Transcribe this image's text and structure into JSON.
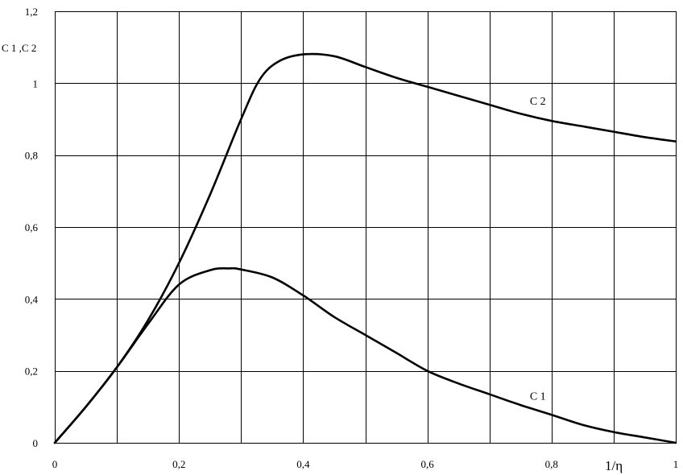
{
  "chart_data": {
    "type": "line",
    "title": "",
    "xlabel": "1/η",
    "ylabel": "C 1 ,C 2",
    "xlim": [
      0,
      1
    ],
    "ylim": [
      0,
      1.2
    ],
    "grid": true,
    "x_ticks": [
      0,
      0.1,
      0.2,
      0.3,
      0.4,
      0.5,
      0.6,
      0.7,
      0.8,
      0.9,
      1
    ],
    "x_tick_labels": [
      "0",
      "",
      "0,2",
      "",
      "0,4",
      "",
      "0,6",
      "",
      "0,8",
      "",
      "1"
    ],
    "y_ticks": [
      0,
      0.2,
      0.4,
      0.6,
      0.8,
      1,
      1.2
    ],
    "y_tick_labels": [
      "0",
      "0,2",
      "0,4",
      "0,6",
      "0,8",
      "1",
      "1,2"
    ],
    "series": [
      {
        "name": "C 1",
        "x": [
          0,
          0.05,
          0.1,
          0.15,
          0.2,
          0.25,
          0.28,
          0.3,
          0.35,
          0.4,
          0.45,
          0.5,
          0.55,
          0.6,
          0.65,
          0.7,
          0.75,
          0.8,
          0.85,
          0.9,
          0.95,
          1
        ],
        "y": [
          0,
          0.1,
          0.21,
          0.33,
          0.44,
          0.48,
          0.485,
          0.482,
          0.46,
          0.41,
          0.35,
          0.3,
          0.25,
          0.2,
          0.165,
          0.135,
          0.105,
          0.078,
          0.05,
          0.03,
          0.015,
          0
        ]
      },
      {
        "name": "C 2",
        "x": [
          0,
          0.05,
          0.1,
          0.15,
          0.2,
          0.25,
          0.3,
          0.33,
          0.36,
          0.4,
          0.45,
          0.5,
          0.55,
          0.6,
          0.65,
          0.7,
          0.75,
          0.8,
          0.85,
          0.9,
          0.95,
          1
        ],
        "y": [
          0,
          0.1,
          0.21,
          0.34,
          0.5,
          0.69,
          0.9,
          1.01,
          1.06,
          1.08,
          1.075,
          1.045,
          1.015,
          0.99,
          0.965,
          0.94,
          0.915,
          0.895,
          0.88,
          0.865,
          0.85,
          0.838
        ]
      }
    ],
    "annotations": [
      {
        "text": "C 2",
        "x": 0.765,
        "y": 0.94
      },
      {
        "text": "C 1",
        "x": 0.765,
        "y": 0.12
      }
    ]
  }
}
